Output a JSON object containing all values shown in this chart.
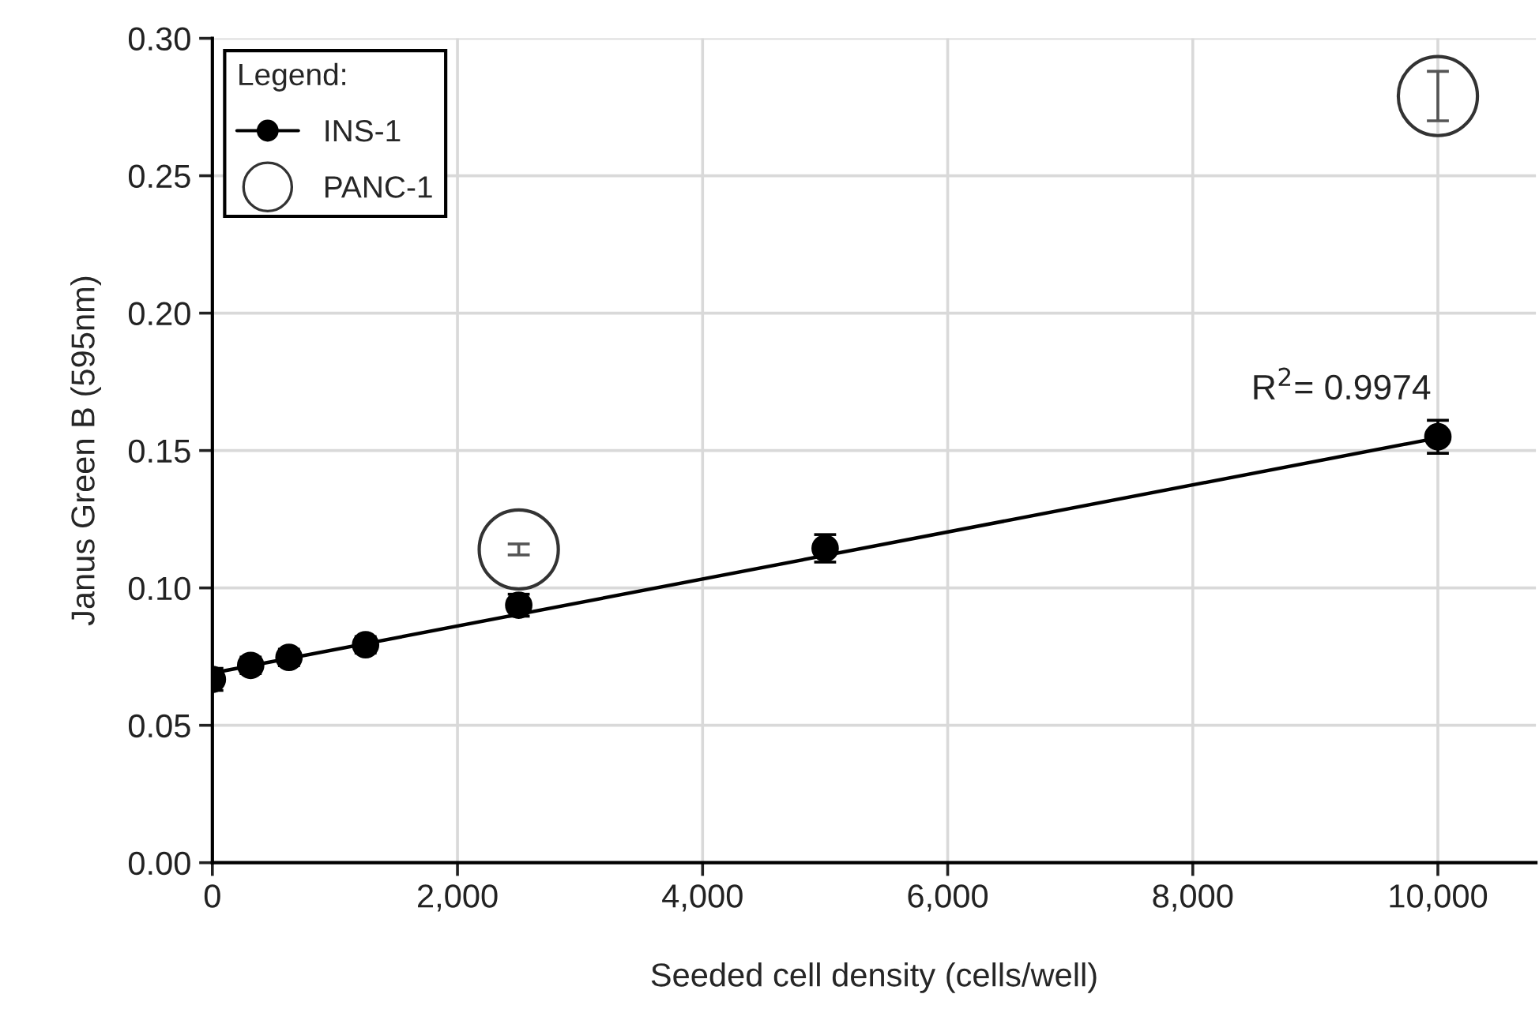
{
  "chart_data": {
    "type": "scatter",
    "xlabel": "Seeded cell density (cells/well)",
    "ylabel": "Janus Green B (595nm)",
    "legend_title": "Legend:",
    "xlim": [
      0,
      10800
    ],
    "xticks": [
      {
        "value": 0,
        "label": "0"
      },
      {
        "value": 2000,
        "label": "2,000"
      },
      {
        "value": 4000,
        "label": "4,000"
      },
      {
        "value": 6000,
        "label": "6,000"
      },
      {
        "value": 8000,
        "label": "8,000"
      },
      {
        "value": 10000,
        "label": "10,000"
      }
    ],
    "ylim": [
      0,
      0.3
    ],
    "yticks": [
      {
        "value": 0,
        "label": "0.00"
      },
      {
        "value": 0.05,
        "label": "0.05"
      },
      {
        "value": 0.1,
        "label": "0.10"
      },
      {
        "value": 0.15,
        "label": "0.15"
      },
      {
        "value": 0.2,
        "label": "0.20"
      },
      {
        "value": 0.25,
        "label": "0.25"
      },
      {
        "value": 0.3,
        "label": "0.30"
      }
    ],
    "grid": true,
    "legend": "top left",
    "series": [
      {
        "name": "INS-1",
        "marker": "circle",
        "color": "#000000",
        "x": [
          0,
          312.5,
          625,
          1250,
          2500,
          5000,
          10000
        ],
        "values": [
          0.0667,
          0.0718,
          0.0747,
          0.0793,
          0.0937,
          0.1144,
          0.155
        ],
        "errors": [
          0.004,
          0.003,
          0.003,
          0.003,
          0.004,
          0.005,
          0.006
        ]
      },
      {
        "name": "PANC-1",
        "type": "bubble",
        "color": "#333333",
        "x": [
          2500,
          10000
        ],
        "values": [
          0.114,
          0.279
        ],
        "sizes": [
          1,
          1
        ],
        "errors": [
          0.002,
          0.009
        ]
      },
      {
        "type": "line",
        "color": "#000000",
        "x": [
          0,
          10000
        ],
        "values": [
          0.069,
          0.1546
        ]
      }
    ],
    "annotations": [
      "R$^{2}$= 0.9974"
    ]
  }
}
